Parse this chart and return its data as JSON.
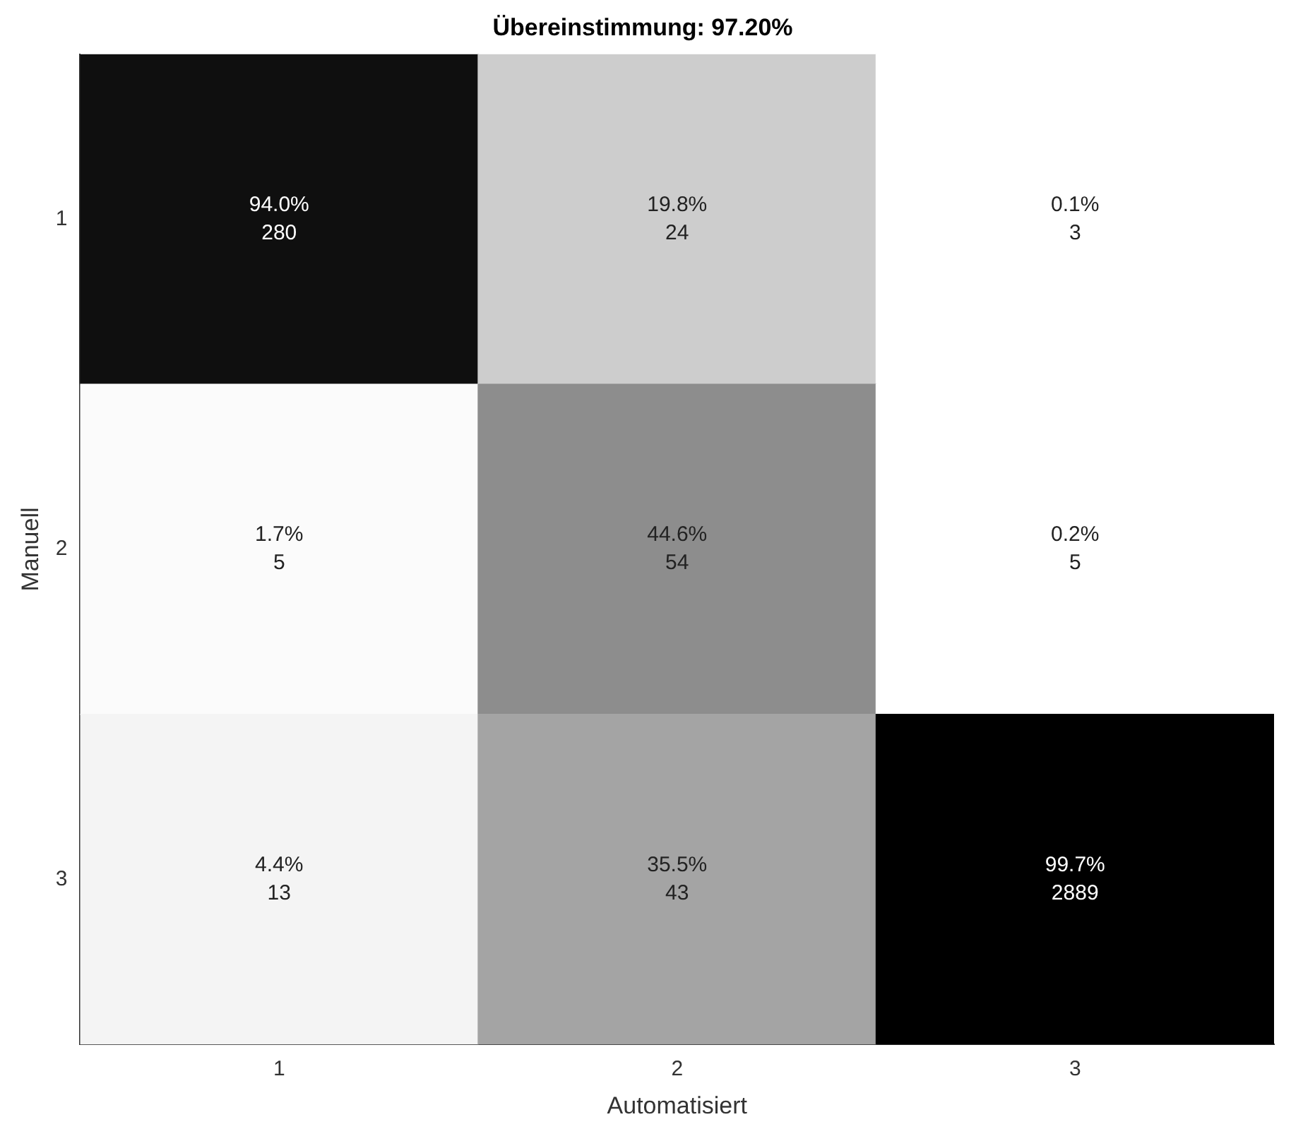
{
  "chart_data": {
    "type": "heatmap",
    "title": "Übereinstimmung: 97.20%",
    "xlabel": "Automatisiert",
    "ylabel": "Manuell",
    "categories": [
      "1",
      "2",
      "3"
    ],
    "y_categories": [
      "1",
      "2",
      "3"
    ],
    "cells": [
      [
        94.0,
        19.8,
        0.1
      ],
      [
        1.7,
        44.6,
        0.2
      ],
      [
        4.4,
        35.5,
        99.7
      ]
    ],
    "cell_labels": [
      [
        "94.0%",
        "19.8%",
        "0.1%"
      ],
      [
        "1.7%",
        "44.6%",
        "0.2%"
      ],
      [
        "4.4%",
        "35.5%",
        "99.7%"
      ]
    ],
    "annotations": [
      "280",
      "24",
      "3",
      "5",
      "54",
      "5",
      "13",
      "43",
      "2889"
    ]
  }
}
